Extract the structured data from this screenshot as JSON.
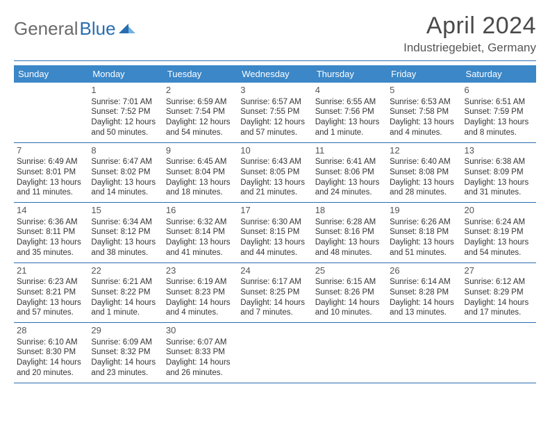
{
  "logo": {
    "part1": "General",
    "part2": "Blue"
  },
  "title": "April 2024",
  "subtitle": "Industriegebiet, Germany",
  "colors": {
    "header_bg": "#3b87c8",
    "rule": "#2a6db0",
    "logo_gray": "#6a6a6a",
    "logo_blue": "#2a6db0",
    "text": "#333333",
    "title_color": "#4a4a4a"
  },
  "day_headers": [
    "Sunday",
    "Monday",
    "Tuesday",
    "Wednesday",
    "Thursday",
    "Friday",
    "Saturday"
  ],
  "weeks": [
    [
      {
        "day": "",
        "sunrise": "",
        "sunset": "",
        "daylight": ""
      },
      {
        "day": "1",
        "sunrise": "Sunrise: 7:01 AM",
        "sunset": "Sunset: 7:52 PM",
        "daylight": "Daylight: 12 hours and 50 minutes."
      },
      {
        "day": "2",
        "sunrise": "Sunrise: 6:59 AM",
        "sunset": "Sunset: 7:54 PM",
        "daylight": "Daylight: 12 hours and 54 minutes."
      },
      {
        "day": "3",
        "sunrise": "Sunrise: 6:57 AM",
        "sunset": "Sunset: 7:55 PM",
        "daylight": "Daylight: 12 hours and 57 minutes."
      },
      {
        "day": "4",
        "sunrise": "Sunrise: 6:55 AM",
        "sunset": "Sunset: 7:56 PM",
        "daylight": "Daylight: 13 hours and 1 minute."
      },
      {
        "day": "5",
        "sunrise": "Sunrise: 6:53 AM",
        "sunset": "Sunset: 7:58 PM",
        "daylight": "Daylight: 13 hours and 4 minutes."
      },
      {
        "day": "6",
        "sunrise": "Sunrise: 6:51 AM",
        "sunset": "Sunset: 7:59 PM",
        "daylight": "Daylight: 13 hours and 8 minutes."
      }
    ],
    [
      {
        "day": "7",
        "sunrise": "Sunrise: 6:49 AM",
        "sunset": "Sunset: 8:01 PM",
        "daylight": "Daylight: 13 hours and 11 minutes."
      },
      {
        "day": "8",
        "sunrise": "Sunrise: 6:47 AM",
        "sunset": "Sunset: 8:02 PM",
        "daylight": "Daylight: 13 hours and 14 minutes."
      },
      {
        "day": "9",
        "sunrise": "Sunrise: 6:45 AM",
        "sunset": "Sunset: 8:04 PM",
        "daylight": "Daylight: 13 hours and 18 minutes."
      },
      {
        "day": "10",
        "sunrise": "Sunrise: 6:43 AM",
        "sunset": "Sunset: 8:05 PM",
        "daylight": "Daylight: 13 hours and 21 minutes."
      },
      {
        "day": "11",
        "sunrise": "Sunrise: 6:41 AM",
        "sunset": "Sunset: 8:06 PM",
        "daylight": "Daylight: 13 hours and 24 minutes."
      },
      {
        "day": "12",
        "sunrise": "Sunrise: 6:40 AM",
        "sunset": "Sunset: 8:08 PM",
        "daylight": "Daylight: 13 hours and 28 minutes."
      },
      {
        "day": "13",
        "sunrise": "Sunrise: 6:38 AM",
        "sunset": "Sunset: 8:09 PM",
        "daylight": "Daylight: 13 hours and 31 minutes."
      }
    ],
    [
      {
        "day": "14",
        "sunrise": "Sunrise: 6:36 AM",
        "sunset": "Sunset: 8:11 PM",
        "daylight": "Daylight: 13 hours and 35 minutes."
      },
      {
        "day": "15",
        "sunrise": "Sunrise: 6:34 AM",
        "sunset": "Sunset: 8:12 PM",
        "daylight": "Daylight: 13 hours and 38 minutes."
      },
      {
        "day": "16",
        "sunrise": "Sunrise: 6:32 AM",
        "sunset": "Sunset: 8:14 PM",
        "daylight": "Daylight: 13 hours and 41 minutes."
      },
      {
        "day": "17",
        "sunrise": "Sunrise: 6:30 AM",
        "sunset": "Sunset: 8:15 PM",
        "daylight": "Daylight: 13 hours and 44 minutes."
      },
      {
        "day": "18",
        "sunrise": "Sunrise: 6:28 AM",
        "sunset": "Sunset: 8:16 PM",
        "daylight": "Daylight: 13 hours and 48 minutes."
      },
      {
        "day": "19",
        "sunrise": "Sunrise: 6:26 AM",
        "sunset": "Sunset: 8:18 PM",
        "daylight": "Daylight: 13 hours and 51 minutes."
      },
      {
        "day": "20",
        "sunrise": "Sunrise: 6:24 AM",
        "sunset": "Sunset: 8:19 PM",
        "daylight": "Daylight: 13 hours and 54 minutes."
      }
    ],
    [
      {
        "day": "21",
        "sunrise": "Sunrise: 6:23 AM",
        "sunset": "Sunset: 8:21 PM",
        "daylight": "Daylight: 13 hours and 57 minutes."
      },
      {
        "day": "22",
        "sunrise": "Sunrise: 6:21 AM",
        "sunset": "Sunset: 8:22 PM",
        "daylight": "Daylight: 14 hours and 1 minute."
      },
      {
        "day": "23",
        "sunrise": "Sunrise: 6:19 AM",
        "sunset": "Sunset: 8:23 PM",
        "daylight": "Daylight: 14 hours and 4 minutes."
      },
      {
        "day": "24",
        "sunrise": "Sunrise: 6:17 AM",
        "sunset": "Sunset: 8:25 PM",
        "daylight": "Daylight: 14 hours and 7 minutes."
      },
      {
        "day": "25",
        "sunrise": "Sunrise: 6:15 AM",
        "sunset": "Sunset: 8:26 PM",
        "daylight": "Daylight: 14 hours and 10 minutes."
      },
      {
        "day": "26",
        "sunrise": "Sunrise: 6:14 AM",
        "sunset": "Sunset: 8:28 PM",
        "daylight": "Daylight: 14 hours and 13 minutes."
      },
      {
        "day": "27",
        "sunrise": "Sunrise: 6:12 AM",
        "sunset": "Sunset: 8:29 PM",
        "daylight": "Daylight: 14 hours and 17 minutes."
      }
    ],
    [
      {
        "day": "28",
        "sunrise": "Sunrise: 6:10 AM",
        "sunset": "Sunset: 8:30 PM",
        "daylight": "Daylight: 14 hours and 20 minutes."
      },
      {
        "day": "29",
        "sunrise": "Sunrise: 6:09 AM",
        "sunset": "Sunset: 8:32 PM",
        "daylight": "Daylight: 14 hours and 23 minutes."
      },
      {
        "day": "30",
        "sunrise": "Sunrise: 6:07 AM",
        "sunset": "Sunset: 8:33 PM",
        "daylight": "Daylight: 14 hours and 26 minutes."
      },
      {
        "day": "",
        "sunrise": "",
        "sunset": "",
        "daylight": ""
      },
      {
        "day": "",
        "sunrise": "",
        "sunset": "",
        "daylight": ""
      },
      {
        "day": "",
        "sunrise": "",
        "sunset": "",
        "daylight": ""
      },
      {
        "day": "",
        "sunrise": "",
        "sunset": "",
        "daylight": ""
      }
    ]
  ]
}
